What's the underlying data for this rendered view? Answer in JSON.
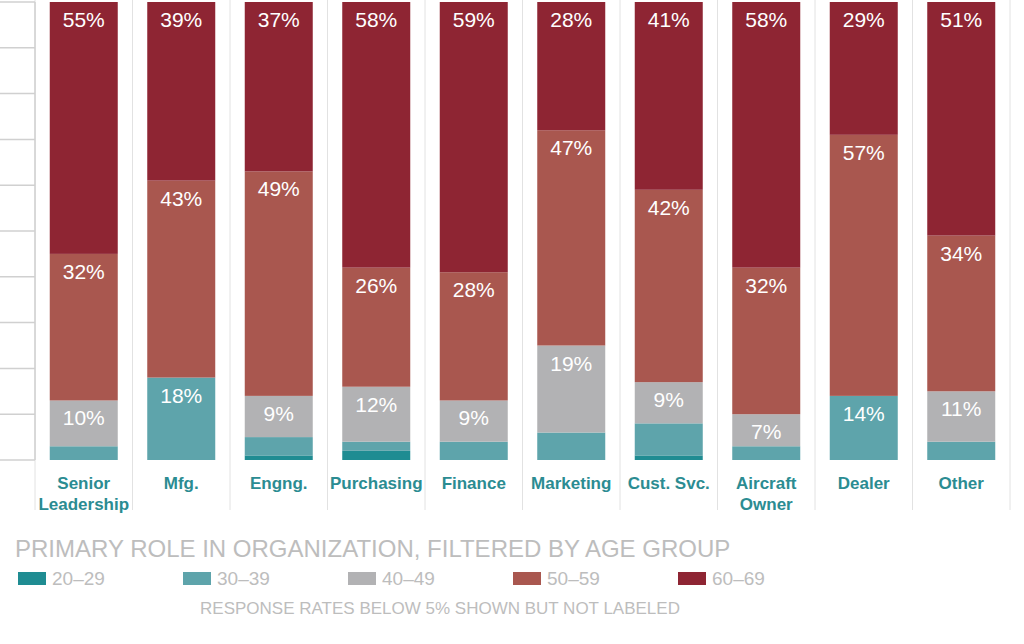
{
  "chart_data": {
    "type": "bar",
    "stacked": true,
    "data_labels": true,
    "tick_labels": false,
    "grid": false,
    "legend": "bottom",
    "title": "PRIMARY ROLE IN ORGANIZATION, FILTERED BY AGE GROUP",
    "subtitle": "RESPONSE RATES BELOW 5% SHOWN BUT NOT LABELED",
    "categories": [
      "Senior Leadership",
      "Mfg.",
      "Engng.",
      "Purchasing",
      "Finance",
      "Marketing",
      "Cust. Svc.",
      "Aircraft Owner",
      "Dealer",
      "Other"
    ],
    "ylim": [
      0,
      100
    ],
    "yticks": [
      0,
      10,
      20,
      30,
      40,
      50,
      60,
      70,
      80,
      90,
      100
    ],
    "series": [
      {
        "name": "20–29",
        "color": "#1f8c92",
        "values": [
          0,
          0,
          1,
          2,
          0,
          0,
          1,
          0,
          0,
          0
        ],
        "value_labels": [
          null,
          null,
          null,
          null,
          null,
          null,
          null,
          null,
          null,
          null
        ]
      },
      {
        "name": "30–39",
        "color": "#5ea4ab",
        "values": [
          3,
          18,
          4,
          2,
          4,
          6,
          7,
          3,
          14,
          4
        ],
        "value_labels": [
          null,
          "18%",
          null,
          null,
          null,
          null,
          null,
          null,
          "14%",
          null
        ]
      },
      {
        "name": "40–49",
        "color": "#b2b2b4",
        "values": [
          10,
          0,
          9,
          12,
          9,
          19,
          9,
          7,
          0,
          11
        ],
        "value_labels": [
          "10%",
          null,
          "9%",
          "12%",
          "9%",
          "19%",
          "9%",
          "7%",
          null,
          "11%"
        ]
      },
      {
        "name": "50–59",
        "color": "#a9574f",
        "values": [
          32,
          43,
          49,
          26,
          28,
          47,
          42,
          32,
          57,
          34
        ],
        "value_labels": [
          "32%",
          "43%",
          "49%",
          "26%",
          "28%",
          "47%",
          "42%",
          "32%",
          "57%",
          "34%"
        ]
      },
      {
        "name": "60–69",
        "color": "#8e2533",
        "values": [
          55,
          39,
          37,
          58,
          59,
          28,
          41,
          58,
          29,
          51
        ],
        "value_labels": [
          "55%",
          "39%",
          "37%",
          "58%",
          "59%",
          "28%",
          "41%",
          "58%",
          "29%",
          "51%"
        ]
      }
    ]
  }
}
